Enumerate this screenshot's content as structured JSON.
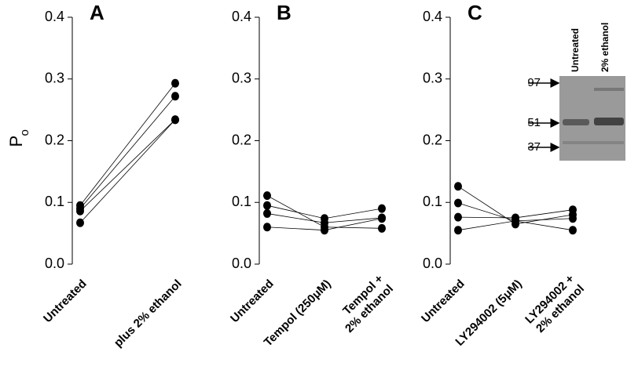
{
  "chart_data": [
    {
      "type": "paired-line",
      "panel_label": "A",
      "ylabel": "P",
      "ylabel_subscript": "o",
      "categories": [
        "Untreated",
        "plus 2% ethanol"
      ],
      "ylim": [
        0,
        0.4
      ],
      "yticks": [
        {
          "value": 0,
          "label": "0.0"
        },
        0.1,
        0.2,
        0.3,
        0.4
      ],
      "series": [
        {
          "color": "#000000",
          "values": [
            0.095,
            0.293
          ]
        },
        {
          "color": "#000000",
          "values": [
            0.09,
            0.272
          ]
        },
        {
          "color": "#000000",
          "values": [
            0.086,
            0.234
          ]
        },
        {
          "color": "#000000",
          "values": [
            0.067,
            0.234
          ]
        }
      ]
    },
    {
      "type": "paired-line",
      "panel_label": "B",
      "categories": [
        "Untreated",
        "Tempol (250μM)",
        "Tempol +\n2% ethanol"
      ],
      "ylim": [
        0,
        0.4
      ],
      "yticks": [
        {
          "value": 0,
          "label": "0.0"
        },
        0.1,
        0.2,
        0.3,
        0.4
      ],
      "series": [
        {
          "color": "#000000",
          "values": [
            0.111,
            0.06,
            0.058
          ]
        },
        {
          "color": "#000000",
          "values": [
            0.095,
            0.074,
            0.09
          ]
        },
        {
          "color": "#000000",
          "values": [
            0.082,
            0.067,
            0.075
          ]
        },
        {
          "color": "#000000",
          "values": [
            0.06,
            0.055,
            0.074
          ]
        }
      ]
    },
    {
      "type": "paired-line",
      "panel_label": "C",
      "categories": [
        "Untreated",
        "LY294002 (5μM)",
        "LY294002 +\n2% ethanol"
      ],
      "ylim": [
        0,
        0.4
      ],
      "yticks": [
        {
          "value": 0,
          "label": "0.0"
        },
        0.1,
        0.2,
        0.3,
        0.4
      ],
      "series": [
        {
          "color": "#000000",
          "values": [
            0.126,
            0.065,
            0.08
          ]
        },
        {
          "color": "#000000",
          "values": [
            0.099,
            0.07,
            0.055
          ]
        },
        {
          "color": "#000000",
          "values": [
            0.076,
            0.075,
            0.088
          ]
        },
        {
          "color": "#000000",
          "values": [
            0.055,
            0.07,
            0.074
          ]
        }
      ],
      "inset": {
        "lanes": [
          "Untreated",
          "2% ethanol"
        ],
        "markers": [
          97,
          51,
          37
        ]
      }
    }
  ]
}
